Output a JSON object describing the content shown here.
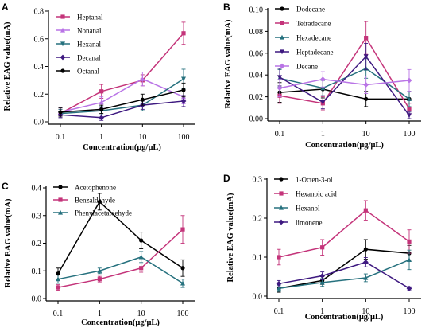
{
  "chart_data": [
    {
      "panel": "A",
      "type": "line",
      "x": [
        "0.1",
        "1",
        "10",
        "100"
      ],
      "xlabel": "Concentration(μg/μL)",
      "ylabel": "Relative EAG value(mA)",
      "ylim": [
        0,
        0.8
      ],
      "yticks": [
        "0.0",
        "0.2",
        "0.4",
        "0.6",
        "0.8"
      ],
      "legend_position": "top-left",
      "series": [
        {
          "name": "Heptanal",
          "color": "#c4347a",
          "marker": "square",
          "values": [
            0.06,
            0.22,
            0.3,
            0.64
          ],
          "errors": [
            0.03,
            0.05,
            0.04,
            0.08
          ]
        },
        {
          "name": "Nonanal",
          "color": "#b974e6",
          "marker": "triangle",
          "values": [
            0.07,
            0.14,
            0.31,
            0.18
          ],
          "errors": [
            0.03,
            0.04,
            0.05,
            0.05
          ]
        },
        {
          "name": "Hexanal",
          "color": "#26717e",
          "marker": "triangle-down",
          "values": [
            0.06,
            0.08,
            0.12,
            0.31
          ],
          "errors": [
            0.03,
            0.03,
            0.04,
            0.07
          ]
        },
        {
          "name": "Decanal",
          "color": "#3e1980",
          "marker": "diamond",
          "values": [
            0.05,
            0.03,
            0.12,
            0.15
          ],
          "errors": [
            0.02,
            0.02,
            0.03,
            0.04
          ]
        },
        {
          "name": "Octanal",
          "color": "#000000",
          "marker": "circle",
          "values": [
            0.07,
            0.09,
            0.16,
            0.23
          ],
          "errors": [
            0.03,
            0.03,
            0.04,
            0.05
          ]
        }
      ]
    },
    {
      "panel": "B",
      "type": "line",
      "x": [
        "0.1",
        "1",
        "10",
        "100"
      ],
      "xlabel": "Concentration(μg/μL)",
      "ylabel": "Relative EAG value(mA)",
      "ylim": [
        0,
        0.1
      ],
      "yticks": [
        "0.00",
        "0.02",
        "0.04",
        "0.06",
        "0.08",
        "0.10"
      ],
      "legend_position": "top-left",
      "series": [
        {
          "name": "Dodecane",
          "color": "#000000",
          "marker": "circle",
          "values": [
            0.024,
            0.027,
            0.018,
            0.018
          ],
          "errors": [
            0.009,
            0.008,
            0.007,
            0.007
          ]
        },
        {
          "name": "Tetradecane",
          "color": "#c4347a",
          "marker": "square",
          "values": [
            0.021,
            0.014,
            0.074,
            0.009
          ],
          "errors": [
            0.007,
            0.006,
            0.015,
            0.005
          ]
        },
        {
          "name": "Hexadecane",
          "color": "#26717e",
          "marker": "triangle",
          "values": [
            0.037,
            0.028,
            0.046,
            0.018
          ],
          "errors": [
            0.008,
            0.007,
            0.009,
            0.007
          ]
        },
        {
          "name": "Heptadecane",
          "color": "#3e1980",
          "marker": "triangle-down",
          "values": [
            0.038,
            0.015,
            0.057,
            0.003
          ],
          "errors": [
            0.008,
            0.006,
            0.012,
            0.003
          ]
        },
        {
          "name": "Decane",
          "color": "#b974e6",
          "marker": "diamond",
          "values": [
            0.028,
            0.036,
            0.031,
            0.035
          ],
          "errors": [
            0.008,
            0.007,
            0.008,
            0.01
          ]
        }
      ]
    },
    {
      "panel": "C",
      "type": "line",
      "x": [
        "0.1",
        "1",
        "10",
        "100"
      ],
      "xlabel": "Concentration(μg/μL)",
      "ylabel": "Relative EAG value(mA)",
      "ylim": [
        0,
        0.4
      ],
      "yticks": [
        "0.0",
        "0.1",
        "0.2",
        "0.3",
        "0.4"
      ],
      "legend_position": "top-left",
      "series": [
        {
          "name": "Acetophenone",
          "color": "#000000",
          "marker": "circle",
          "values": [
            0.09,
            0.35,
            0.21,
            0.11
          ],
          "errors": [
            0.02,
            0.03,
            0.03,
            0.03
          ]
        },
        {
          "name": "Benzaldehyde",
          "color": "#c4347a",
          "marker": "square",
          "values": [
            0.04,
            0.07,
            0.11,
            0.25
          ],
          "errors": [
            0.01,
            0.01,
            0.015,
            0.05
          ]
        },
        {
          "name": "Phenylacetaldehyde",
          "color": "#26717e",
          "marker": "triangle",
          "values": [
            0.07,
            0.1,
            0.15,
            0.055
          ],
          "errors": [
            0.015,
            0.01,
            0.02,
            0.015
          ]
        }
      ]
    },
    {
      "panel": "D",
      "type": "line",
      "x": [
        "0.1",
        "1",
        "10",
        "100"
      ],
      "xlabel": "Concentration(μg/μL)",
      "ylabel": "Relative EAG value(mA)",
      "ylim": [
        0,
        0.3
      ],
      "yticks": [
        "0.0",
        "0.1",
        "0.2",
        "0.3"
      ],
      "legend_position": "top-left",
      "series": [
        {
          "name": "1-Octen-3-ol",
          "color": "#000000",
          "marker": "circle",
          "values": [
            0.02,
            0.04,
            0.12,
            0.11
          ],
          "errors": [
            0.01,
            0.01,
            0.025,
            0.02
          ]
        },
        {
          "name": "Hexanoic acid",
          "color": "#c4347a",
          "marker": "square",
          "values": [
            0.1,
            0.125,
            0.22,
            0.14
          ],
          "errors": [
            0.02,
            0.02,
            0.025,
            0.03
          ]
        },
        {
          "name": "Hexanol",
          "color": "#26717e",
          "marker": "triangle",
          "values": [
            0.02,
            0.035,
            0.047,
            0.093
          ],
          "errors": [
            0.008,
            0.01,
            0.01,
            0.025
          ]
        },
        {
          "name": "limonene",
          "color": "#3e1980",
          "marker": "diamond",
          "values": [
            0.032,
            0.052,
            0.087,
            0.02
          ],
          "errors": [
            0.008,
            0.01,
            0.012,
            0.004
          ]
        }
      ]
    }
  ]
}
